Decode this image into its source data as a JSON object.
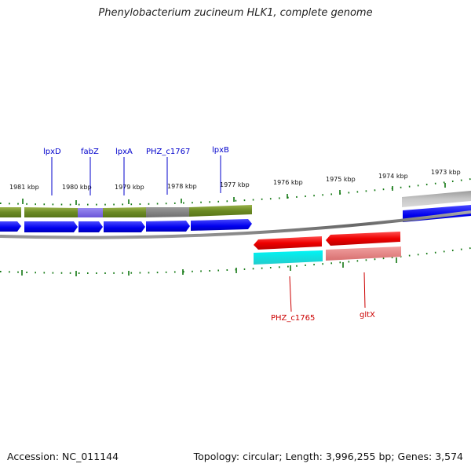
{
  "title": "Phenylobacterium zucineum HLK1, complete genome",
  "footer": {
    "accession": "Accession: NC_011144",
    "topology": "Topology: circular; Length: 3,996,255 bp; Genes: 3,574"
  },
  "colors": {
    "forward_label": "#0000cc",
    "reverse_label": "#cc0000",
    "tick": "#117711",
    "backbone": "#7a7a7a"
  },
  "ruler_labels": {
    "kbp_1981": "1981 kbp",
    "kbp_1980": "1980 kbp",
    "kbp_1979": "1979 kbp",
    "kbp_1978": "1978 kbp",
    "kbp_1977": "1977 kbp",
    "kbp_1976": "1976 kbp",
    "kbp_1975": "1975 kbp",
    "kbp_1974": "1974 kbp",
    "kbp_1973": "1973 kbp"
  },
  "genes": {
    "lpxD": "lpxD",
    "fabZ": "fabZ",
    "lpxA": "lpxA",
    "phz1767": "PHZ_c1767",
    "lpxB": "lpxB",
    "phz1765": "PHZ_c1765",
    "gltX": "gltX"
  }
}
